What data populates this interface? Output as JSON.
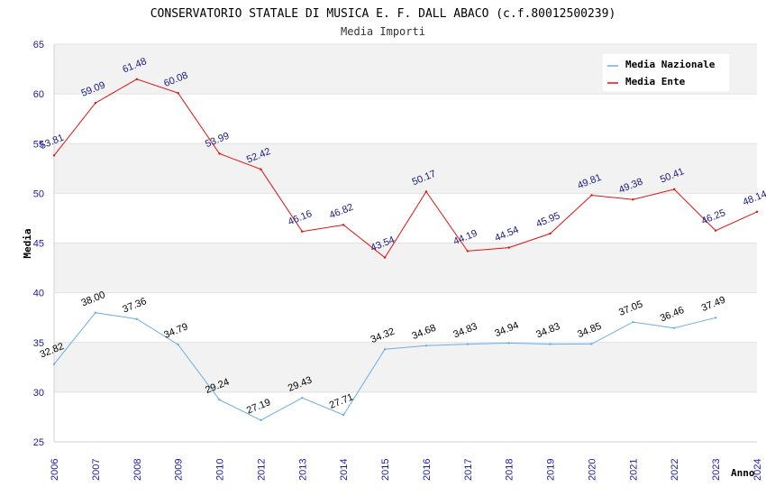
{
  "chart_data": {
    "type": "line",
    "title": "CONSERVATORIO STATALE DI MUSICA E. F. DALL ABACO (c.f.80012500239)",
    "subtitle": "Media Importi",
    "xlabel": "Anno",
    "ylabel": "Media",
    "ylim": [
      25,
      65
    ],
    "yticks": [
      "25",
      "30",
      "35",
      "40",
      "45",
      "50",
      "55",
      "60",
      "65"
    ],
    "categories": [
      "2006",
      "2007",
      "2008",
      "2009",
      "2010",
      "2012",
      "2013",
      "2014",
      "2015",
      "2016",
      "2017",
      "2018",
      "2019",
      "2020",
      "2021",
      "2022",
      "2023",
      "2024"
    ],
    "grid": true,
    "legend_position": "top-right",
    "series": [
      {
        "name": "Media Nazionale",
        "color": "#6aaee6",
        "label_color": "#000000",
        "values": [
          32.82,
          38.0,
          37.36,
          34.79,
          29.24,
          27.19,
          29.43,
          27.71,
          34.32,
          34.68,
          34.83,
          34.94,
          34.83,
          34.85,
          37.05,
          36.46,
          37.49,
          null
        ],
        "labels": [
          "32.82",
          "38.00",
          "37.36",
          "34.79",
          "29.24",
          "27.19",
          "29.43",
          "27.71",
          "34.32",
          "34.68",
          "34.83",
          "34.94",
          "34.83",
          "34.85",
          "37.05",
          "36.46",
          "37.49",
          null
        ]
      },
      {
        "name": "Media Ente",
        "color": "#e01010",
        "label_color": "#1a1a80",
        "values": [
          53.81,
          59.09,
          61.48,
          60.08,
          53.99,
          52.42,
          46.16,
          46.82,
          43.54,
          50.17,
          44.19,
          44.54,
          45.95,
          49.81,
          49.38,
          50.41,
          46.25,
          48.14
        ],
        "labels": [
          "53.81",
          "59.09",
          "61.48",
          "60.08",
          "53.99",
          "52.42",
          "46.16",
          "46.82",
          "43.54",
          "50.17",
          "44.19",
          "44.54",
          "45.95",
          "49.81",
          "49.38",
          "50.41",
          "46.25",
          "48.14"
        ]
      }
    ]
  }
}
